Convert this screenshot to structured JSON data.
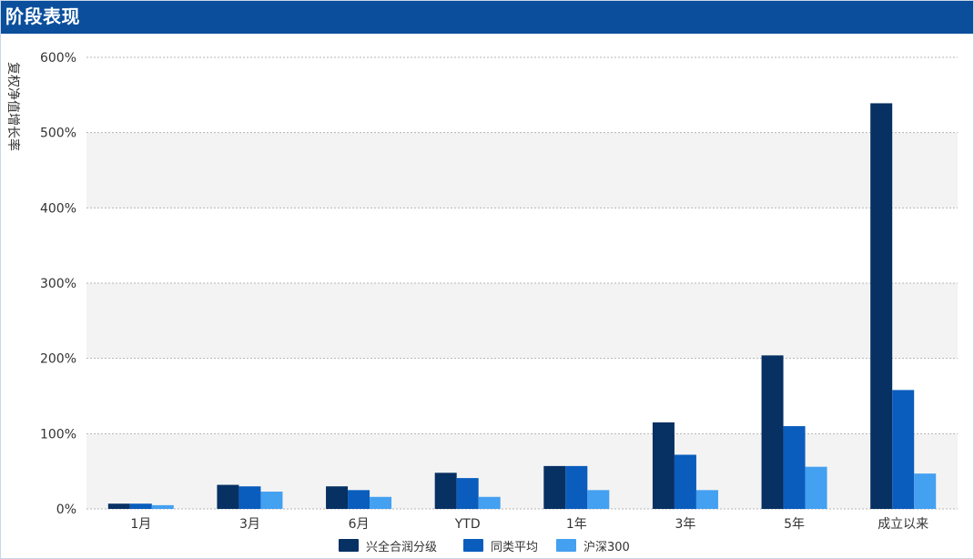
{
  "header": {
    "title": "阶段表现"
  },
  "chart_data": {
    "type": "bar",
    "categories": [
      "1月",
      "3月",
      "6月",
      "YTD",
      "1年",
      "3年",
      "5年",
      "成立以来"
    ],
    "series": [
      {
        "name": "兴全合润分级",
        "color": "#073063",
        "values": [
          7,
          32,
          30,
          48,
          57,
          115,
          204,
          539
        ]
      },
      {
        "name": "同类平均",
        "color": "#0a5dbd",
        "values": [
          7,
          30,
          25,
          41,
          57,
          72,
          110,
          158
        ]
      },
      {
        "name": "沪深300",
        "color": "#44a0f0",
        "values": [
          5,
          23,
          16,
          16,
          25,
          25,
          56,
          47
        ]
      }
    ],
    "ylabel": "复权净值增长率",
    "ylim": [
      0,
      600
    ],
    "yticks": [
      "0%",
      "100%",
      "200%",
      "300%",
      "400%",
      "500%",
      "600%"
    ],
    "grid": true,
    "legend_position": "bottom"
  }
}
